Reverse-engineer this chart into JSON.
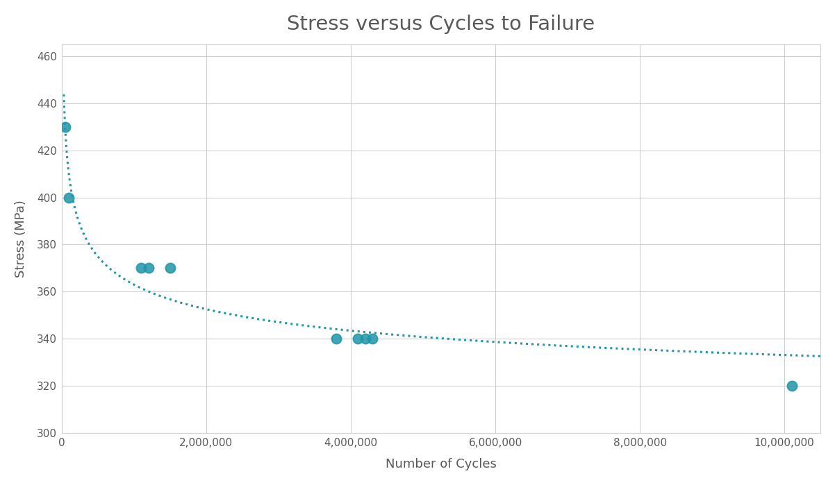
{
  "title": "Stress versus Cycles to Failure",
  "xlabel": "Number of Cycles",
  "ylabel": "Stress (MPa)",
  "scatter_x": [
    50000,
    100000,
    1100000,
    1200000,
    1500000,
    3800000,
    4100000,
    4200000,
    4300000,
    10100000
  ],
  "scatter_y": [
    430,
    400,
    370,
    370,
    370,
    340,
    340,
    340,
    340,
    320
  ],
  "xlim": [
    0,
    10500000
  ],
  "ylim": [
    300,
    465
  ],
  "yticks": [
    300,
    320,
    340,
    360,
    380,
    400,
    420,
    440,
    460
  ],
  "xticks": [
    0,
    2000000,
    4000000,
    6000000,
    8000000,
    10000000
  ],
  "dot_color": "#2196a8",
  "line_color": "#2196a8",
  "background_color": "#ffffff",
  "grid_color": "#d0d0d0",
  "title_color": "#595959",
  "label_color": "#595959",
  "tick_color": "#595959",
  "dot_size": 100,
  "title_fontsize": 21,
  "label_fontsize": 13,
  "tick_fontsize": 11,
  "curve_start_x": 30000,
  "curve_end_x": 10500000
}
